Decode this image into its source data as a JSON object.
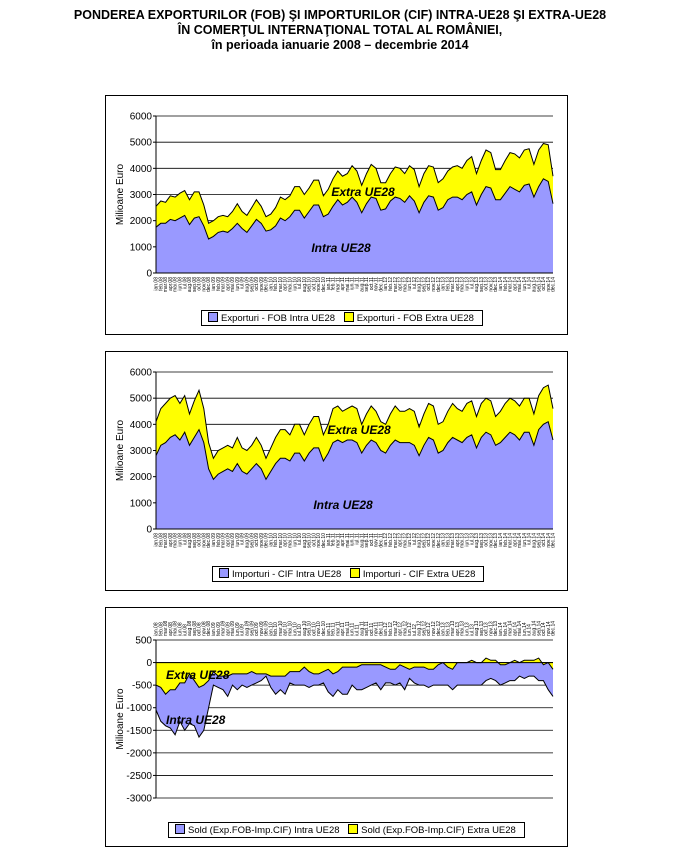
{
  "title": {
    "line1": "PONDEREA EXPORTURILOR (FOB) ŞI IMPORTURILOR (CIF) INTRA-UE28 ŞI EXTRA-UE28",
    "line2": "ÎN COMERŢUL INTERNAŢIONAL TOTAL AL ROMÂNIEI,",
    "line3": "în perioada ianuarie 2008 – decembrie 2014"
  },
  "colors": {
    "intra": "#9999ff",
    "extra": "#ffff00",
    "grid": "#000000",
    "line": "#000000"
  },
  "chart_data": [
    {
      "type": "area",
      "stacked": true,
      "ylabel": "Milioane Euro",
      "ylim": [
        0,
        6000
      ],
      "yticks": [
        0,
        1000,
        2000,
        3000,
        4000,
        5000,
        6000
      ],
      "x_ticks": [
        "ian.08",
        "feb.08",
        "mar.08",
        "apr.08",
        "mai.08",
        "iun.08",
        "iul.08",
        "aug.08",
        "sep.08",
        "oct.08",
        "nov.08",
        "dec.08",
        "ian.09",
        "feb.09",
        "mar.09",
        "apr.09",
        "mai.09",
        "iun.09",
        "iul.09",
        "aug.09",
        "sep.09",
        "oct.09",
        "nov.09",
        "dec.09",
        "ian.10",
        "feb.10",
        "mar.10",
        "apr.10",
        "mai.10",
        "iun.10",
        "iul.10",
        "aug.10",
        "sep.10",
        "oct.10",
        "nov.10",
        "dec.10",
        "ian.11",
        "feb.11",
        "mar.11",
        "apr.11",
        "mai.11",
        "iun.11",
        "iul.11",
        "aug.11",
        "sep.11",
        "oct.11",
        "nov.11",
        "dec.11",
        "ian.12",
        "feb.12",
        "mar.12",
        "apr.12",
        "mai.12",
        "iun.12",
        "iul.12",
        "aug.12",
        "sep.12",
        "oct.12",
        "nov.12",
        "dec.12",
        "ian.13",
        "feb.13",
        "mar.13",
        "apr.13",
        "mai.13",
        "iun.13",
        "iul.13",
        "aug.13",
        "sep.13",
        "oct.13",
        "nov.13",
        "dec.13",
        "ian.14",
        "feb.14",
        "mar.14",
        "apr.14",
        "mai.14",
        "iun.14",
        "iul.14",
        "aug.14",
        "sep.14",
        "oct.14",
        "nov.14",
        "dec.14"
      ],
      "series": [
        {
          "name": "Exporturi - FOB Intra UE28",
          "values": [
            1750,
            1900,
            1900,
            2050,
            2000,
            2100,
            2200,
            1850,
            2100,
            2150,
            1800,
            1300,
            1400,
            1550,
            1600,
            1550,
            1700,
            1900,
            1700,
            1550,
            1800,
            2050,
            1900,
            1600,
            1650,
            1800,
            2100,
            2000,
            2150,
            2400,
            2400,
            2100,
            2350,
            2600,
            2600,
            2150,
            2250,
            2550,
            2800,
            2600,
            2700,
            2900,
            2700,
            2300,
            2650,
            2900,
            2850,
            2400,
            2450,
            2750,
            2900,
            2850,
            2700,
            2950,
            2750,
            2300,
            2700,
            2950,
            2900,
            2400,
            2500,
            2800,
            2900,
            2900,
            2800,
            3000,
            3100,
            2600,
            3000,
            3300,
            3250,
            2800,
            2800,
            3050,
            3300,
            3200,
            3100,
            3350,
            3400,
            2900,
            3300,
            3600,
            3500,
            2650
          ]
        },
        {
          "name": "Exporturi - FOB Extra UE28",
          "values": [
            800,
            850,
            800,
            900,
            900,
            950,
            950,
            950,
            1000,
            950,
            800,
            600,
            600,
            600,
            600,
            600,
            650,
            750,
            650,
            650,
            700,
            750,
            650,
            550,
            600,
            700,
            800,
            800,
            800,
            900,
            900,
            900,
            900,
            950,
            950,
            800,
            950,
            1050,
            1100,
            1100,
            1100,
            1200,
            1200,
            1050,
            1150,
            1250,
            1150,
            1050,
            1000,
            1050,
            1150,
            1150,
            1100,
            1150,
            1200,
            1000,
            1100,
            1150,
            1150,
            1050,
            1100,
            1100,
            1150,
            1200,
            1200,
            1300,
            1350,
            1200,
            1300,
            1400,
            1350,
            1150,
            1150,
            1250,
            1300,
            1350,
            1300,
            1350,
            1350,
            1250,
            1400,
            1350,
            1400,
            1050
          ]
        }
      ],
      "annotations": [
        "Extra UE28",
        "Intra UE28"
      ],
      "legend_position": "bottom"
    },
    {
      "type": "area",
      "stacked": true,
      "ylabel": "Milioane Euro",
      "ylim": [
        0,
        6000
      ],
      "yticks": [
        0,
        1000,
        2000,
        3000,
        4000,
        5000,
        6000
      ],
      "x_ticks": [
        "ian.08",
        "feb.08",
        "mar.08",
        "apr.08",
        "mai.08",
        "iun.08",
        "iul.08",
        "aug.08",
        "sep.08",
        "oct.08",
        "nov.08",
        "dec.08",
        "ian.09",
        "feb.09",
        "mar.09",
        "apr.09",
        "mai.09",
        "iun.09",
        "iul.09",
        "aug.09",
        "sep.09",
        "oct.09",
        "nov.09",
        "dec.09",
        "ian.10",
        "feb.10",
        "mar.10",
        "apr.10",
        "mai.10",
        "iun.10",
        "iul.10",
        "aug.10",
        "sep.10",
        "oct.10",
        "nov.10",
        "dec.10",
        "ian.11",
        "feb.11",
        "mar.11",
        "apr.11",
        "mai.11",
        "iun.11",
        "iul.11",
        "aug.11",
        "sep.11",
        "oct.11",
        "nov.11",
        "dec.11",
        "ian.12",
        "feb.12",
        "mar.12",
        "apr.12",
        "mai.12",
        "iun.12",
        "iul.12",
        "aug.12",
        "sep.12",
        "oct.12",
        "nov.12",
        "dec.12",
        "ian.13",
        "feb.13",
        "mar.13",
        "apr.13",
        "mai.13",
        "iun.13",
        "iul.13",
        "aug.13",
        "sep.13",
        "oct.13",
        "nov.13",
        "dec.13",
        "ian.14",
        "feb.14",
        "mar.14",
        "apr.14",
        "mai.14",
        "iun.14",
        "iul.14",
        "aug.14",
        "sep.14",
        "oct.14",
        "nov.14",
        "dec.14"
      ],
      "series": [
        {
          "name": "Importuri - CIF Intra UE28",
          "values": [
            2800,
            3200,
            3300,
            3500,
            3600,
            3400,
            3700,
            3200,
            3500,
            3800,
            3300,
            2300,
            1900,
            2100,
            2200,
            2300,
            2200,
            2500,
            2200,
            2100,
            2300,
            2500,
            2300,
            1900,
            2200,
            2500,
            2700,
            2700,
            2600,
            2900,
            2900,
            2600,
            2900,
            3100,
            3100,
            2600,
            2900,
            3300,
            3400,
            3300,
            3400,
            3400,
            3300,
            2900,
            3200,
            3400,
            3300,
            3000,
            2900,
            3200,
            3400,
            3300,
            3300,
            3300,
            3200,
            2800,
            3200,
            3500,
            3400,
            2900,
            3000,
            3300,
            3500,
            3400,
            3300,
            3500,
            3600,
            3100,
            3500,
            3700,
            3600,
            3200,
            3300,
            3500,
            3700,
            3600,
            3400,
            3700,
            3700,
            3200,
            3800,
            4000,
            4100,
            3400
          ]
        },
        {
          "name": "Importuri - CIF Extra UE28",
          "values": [
            1300,
            1400,
            1500,
            1500,
            1500,
            1400,
            1400,
            1200,
            1400,
            1500,
            1300,
            1000,
            800,
            900,
            900,
            900,
            900,
            1000,
            900,
            900,
            900,
            1000,
            900,
            800,
            900,
            1000,
            1100,
            1100,
            1000,
            1100,
            1100,
            1000,
            1100,
            1200,
            1200,
            1000,
            1100,
            1300,
            1300,
            1200,
            1200,
            1300,
            1300,
            1100,
            1200,
            1300,
            1200,
            1100,
            1100,
            1200,
            1300,
            1200,
            1200,
            1300,
            1300,
            1100,
            1200,
            1300,
            1300,
            1100,
            1100,
            1200,
            1300,
            1200,
            1200,
            1300,
            1300,
            1200,
            1300,
            1300,
            1300,
            1100,
            1200,
            1300,
            1300,
            1300,
            1300,
            1300,
            1300,
            1200,
            1300,
            1400,
            1400,
            1200
          ]
        }
      ],
      "annotations": [
        "Extra UE28",
        "Intra UE28"
      ],
      "legend_position": "bottom"
    },
    {
      "type": "area",
      "stacked": false,
      "ylabel": "Milioane Euro",
      "ylim": [
        -3000,
        500
      ],
      "yticks": [
        -3000,
        -2500,
        -2000,
        -1500,
        -1000,
        -500,
        0,
        500
      ],
      "x_ticks": [
        "ian.08",
        "feb.08",
        "mar.08",
        "apr.08",
        "mai.08",
        "iun.08",
        "iul.08",
        "aug.08",
        "sep.08",
        "oct.08",
        "nov.08",
        "dec.08",
        "ian.09",
        "feb.09",
        "mar.09",
        "apr.09",
        "mai.09",
        "iun.09",
        "iul.09",
        "aug.09",
        "sep.09",
        "oct.09",
        "nov.09",
        "dec.09",
        "ian.10",
        "feb.10",
        "mar.10",
        "apr.10",
        "mai.10",
        "iun.10",
        "iul.10",
        "aug.10",
        "sep.10",
        "oct.10",
        "nov.10",
        "dec.10",
        "ian.11",
        "feb.11",
        "mar.11",
        "apr.11",
        "mai.11",
        "iun.11",
        "iul.11",
        "aug.11",
        "sep.11",
        "oct.11",
        "nov.11",
        "dec.11",
        "ian.12",
        "feb.12",
        "mar.12",
        "apr.12",
        "mai.12",
        "iun.12",
        "iul.12",
        "aug.12",
        "sep.12",
        "oct.12",
        "nov.12",
        "dec.12",
        "ian.13",
        "feb.13",
        "mar.13",
        "apr.13",
        "mai.13",
        "iun.13",
        "iul.13",
        "aug.13",
        "sep.13",
        "oct.13",
        "nov.13",
        "dec.13",
        "ian.14",
        "feb.14",
        "mar.14",
        "apr.14",
        "mai.14",
        "iun.14",
        "iul.14",
        "aug.14",
        "sep.14",
        "oct.14",
        "nov.14",
        "dec.14"
      ],
      "series": [
        {
          "name": "Sold (Exp.FOB-Imp.CIF) Intra UE28",
          "values": [
            -1050,
            -1300,
            -1400,
            -1450,
            -1600,
            -1300,
            -1500,
            -1350,
            -1400,
            -1650,
            -1500,
            -1000,
            -500,
            -550,
            -600,
            -750,
            -500,
            -600,
            -500,
            -550,
            -500,
            -450,
            -400,
            -300,
            -550,
            -700,
            -600,
            -700,
            -450,
            -500,
            -500,
            -500,
            -550,
            -500,
            -500,
            -450,
            -650,
            -750,
            -600,
            -700,
            -700,
            -500,
            -600,
            -600,
            -550,
            -500,
            -450,
            -600,
            -450,
            -450,
            -500,
            -450,
            -600,
            -350,
            -450,
            -500,
            -500,
            -550,
            -500,
            -500,
            -500,
            -500,
            -600,
            -500,
            -500,
            -500,
            -500,
            -500,
            -500,
            -400,
            -350,
            -400,
            -500,
            -450,
            -400,
            -400,
            -300,
            -350,
            -300,
            -300,
            -400,
            -400,
            -600,
            -750
          ]
        },
        {
          "name": "Sold (Exp.FOB-Imp.CIF) Extra UE28",
          "values": [
            -500,
            -550,
            -700,
            -600,
            -600,
            -450,
            -450,
            -250,
            -400,
            -550,
            -500,
            -400,
            -200,
            -300,
            -300,
            -300,
            -250,
            -250,
            -250,
            -250,
            -200,
            -250,
            -250,
            -250,
            -300,
            -300,
            -300,
            -300,
            -200,
            -200,
            -200,
            -100,
            -200,
            -250,
            -250,
            -200,
            -150,
            -250,
            -200,
            -100,
            -100,
            -100,
            -100,
            -50,
            -50,
            -50,
            -50,
            -50,
            -100,
            -150,
            -150,
            -50,
            -100,
            -150,
            -100,
            -100,
            -100,
            -150,
            -150,
            -50,
            0,
            -100,
            -150,
            0,
            0,
            0,
            50,
            0,
            0,
            100,
            50,
            50,
            -50,
            -50,
            0,
            50,
            0,
            50,
            50,
            50,
            100,
            -50,
            0,
            -150
          ]
        }
      ],
      "annotations": [
        "Extra UE28",
        "Intra UE28"
      ],
      "legend_position": "bottom"
    }
  ]
}
